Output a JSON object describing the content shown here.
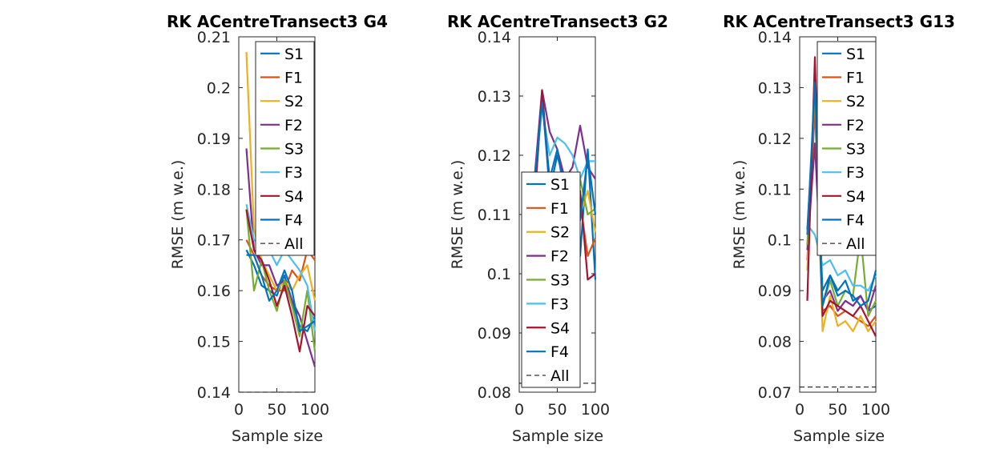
{
  "chart_data": [
    {
      "type": "line",
      "title": "RK ACentreTransect3 G4",
      "xlabel": "Sample size",
      "ylabel": "RMSE (m w.e.)",
      "xlim": [
        0,
        100
      ],
      "ylim": [
        0.14,
        0.21
      ],
      "xticks": [
        "0",
        "50",
        "100"
      ],
      "yticks": [
        "0.14",
        "0.15",
        "0.16",
        "0.17",
        "0.18",
        "0.19",
        "0.2",
        "0.21"
      ],
      "legend_position": "top-right",
      "x": [
        10,
        20,
        30,
        40,
        50,
        60,
        70,
        80,
        90,
        100
      ],
      "series": [
        {
          "name": "S1",
          "color": "#0072BD",
          "values": [
            0.168,
            0.165,
            0.161,
            0.16,
            0.159,
            0.163,
            0.158,
            0.153,
            0.152,
            0.155
          ]
        },
        {
          "name": "F1",
          "color": "#D95319",
          "values": [
            0.17,
            0.167,
            0.163,
            0.161,
            0.16,
            0.16,
            0.164,
            0.162,
            0.168,
            0.166
          ]
        },
        {
          "name": "S2",
          "color": "#EDB120",
          "values": [
            0.207,
            0.172,
            0.166,
            0.163,
            0.16,
            0.162,
            0.16,
            0.163,
            0.165,
            0.158
          ]
        },
        {
          "name": "F2",
          "color": "#7E2F8E",
          "values": [
            0.188,
            0.168,
            0.165,
            0.165,
            0.161,
            0.162,
            0.158,
            0.155,
            0.15,
            0.145
          ]
        },
        {
          "name": "S3",
          "color": "#77AC30",
          "values": [
            0.176,
            0.16,
            0.166,
            0.16,
            0.156,
            0.162,
            0.157,
            0.151,
            0.16,
            0.148
          ]
        },
        {
          "name": "F3",
          "color": "#4DBEEE",
          "values": [
            0.177,
            0.17,
            0.169,
            0.168,
            0.165,
            0.168,
            0.166,
            0.164,
            0.161,
            0.152
          ]
        },
        {
          "name": "S4",
          "color": "#A2142F",
          "values": [
            0.176,
            0.168,
            0.166,
            0.162,
            0.157,
            0.161,
            0.155,
            0.148,
            0.157,
            0.155
          ]
        },
        {
          "name": "F4",
          "color": "#0072BD",
          "values": [
            0.167,
            0.167,
            0.163,
            0.158,
            0.16,
            0.164,
            0.16,
            0.152,
            0.153,
            0.154
          ]
        }
      ],
      "reference": {
        "name": "All",
        "value": 0.14,
        "style": "dashed"
      }
    },
    {
      "type": "line",
      "title": "RK ACentreTransect3 G2",
      "xlabel": "Sample size",
      "ylabel": "RMSE (m w.e.)",
      "xlim": [
        0,
        100
      ],
      "ylim": [
        0.08,
        0.14
      ],
      "xticks": [
        "0",
        "50",
        "100"
      ],
      "yticks": [
        "0.08",
        "0.09",
        "0.1",
        "0.11",
        "0.12",
        "0.13",
        "0.14"
      ],
      "legend_position": "bottom-left",
      "x": [
        10,
        20,
        30,
        40,
        50,
        60,
        70,
        80,
        90,
        100
      ],
      "series": [
        {
          "name": "S1",
          "color": "#0072BD",
          "values": [
            0.11,
            0.112,
            0.13,
            0.114,
            0.12,
            0.115,
            0.11,
            0.103,
            0.121,
            0.099
          ]
        },
        {
          "name": "F1",
          "color": "#D95319",
          "values": [
            0.115,
            0.117,
            0.117,
            0.116,
            0.112,
            0.117,
            0.113,
            0.112,
            0.103,
            0.106
          ]
        },
        {
          "name": "S2",
          "color": "#EDB120",
          "values": [
            0.111,
            0.114,
            0.116,
            0.115,
            0.114,
            0.116,
            0.112,
            0.11,
            0.114,
            0.107
          ]
        },
        {
          "name": "F2",
          "color": "#7E2F8E",
          "values": [
            0.112,
            0.116,
            0.131,
            0.124,
            0.121,
            0.116,
            0.118,
            0.125,
            0.118,
            0.116
          ]
        },
        {
          "name": "S3",
          "color": "#77AC30",
          "values": [
            0.109,
            0.113,
            0.116,
            0.114,
            0.115,
            0.113,
            0.111,
            0.116,
            0.11,
            0.111
          ]
        },
        {
          "name": "F3",
          "color": "#4DBEEE",
          "values": [
            0.113,
            0.115,
            0.128,
            0.12,
            0.123,
            0.122,
            0.12,
            0.116,
            0.119,
            0.119
          ]
        },
        {
          "name": "S4",
          "color": "#A2142F",
          "values": [
            0.111,
            0.112,
            0.131,
            0.115,
            0.117,
            0.114,
            0.109,
            0.114,
            0.099,
            0.1
          ]
        },
        {
          "name": "F4",
          "color": "#0072BD",
          "values": [
            0.112,
            0.115,
            0.129,
            0.116,
            0.121,
            0.113,
            0.11,
            0.109,
            0.12,
            0.11
          ]
        }
      ],
      "reference": {
        "name": "All",
        "value": 0.0815,
        "style": "dashed"
      }
    },
    {
      "type": "line",
      "title": "RK ACentreTransect3 G13",
      "xlabel": "Sample size",
      "ylabel": "RMSE (m w.e.)",
      "xlim": [
        0,
        100
      ],
      "ylim": [
        0.07,
        0.14
      ],
      "xticks": [
        "0",
        "50",
        "100"
      ],
      "yticks": [
        "0.07",
        "0.08",
        "0.09",
        "0.1",
        "0.11",
        "0.12",
        "0.13",
        "0.14"
      ],
      "legend_position": "top-right",
      "x": [
        10,
        20,
        30,
        40,
        50,
        60,
        70,
        80,
        90,
        100
      ],
      "series": [
        {
          "name": "S1",
          "color": "#0072BD",
          "values": [
            0.102,
            0.128,
            0.09,
            0.093,
            0.09,
            0.092,
            0.088,
            0.089,
            0.086,
            0.087
          ]
        },
        {
          "name": "F1",
          "color": "#D95319",
          "values": [
            0.096,
            0.126,
            0.086,
            0.087,
            0.085,
            0.086,
            0.085,
            0.084,
            0.083,
            0.085
          ]
        },
        {
          "name": "S2",
          "color": "#EDB120",
          "values": [
            0.094,
            0.132,
            0.082,
            0.089,
            0.083,
            0.084,
            0.082,
            0.085,
            0.082,
            0.084
          ]
        },
        {
          "name": "F2",
          "color": "#7E2F8E",
          "values": [
            0.098,
            0.119,
            0.088,
            0.09,
            0.086,
            0.088,
            0.087,
            0.089,
            0.086,
            0.091
          ]
        },
        {
          "name": "S3",
          "color": "#77AC30",
          "values": [
            0.099,
            0.13,
            0.087,
            0.092,
            0.087,
            0.09,
            0.089,
            0.101,
            0.085,
            0.088
          ]
        },
        {
          "name": "F3",
          "color": "#4DBEEE",
          "values": [
            0.103,
            0.101,
            0.095,
            0.096,
            0.093,
            0.094,
            0.091,
            0.091,
            0.09,
            0.093
          ]
        },
        {
          "name": "S4",
          "color": "#A2142F",
          "values": [
            0.088,
            0.136,
            0.085,
            0.088,
            0.087,
            0.086,
            0.085,
            0.087,
            0.084,
            0.081
          ]
        },
        {
          "name": "F4",
          "color": "#0072BD",
          "values": [
            0.101,
            0.131,
            0.087,
            0.093,
            0.089,
            0.09,
            0.089,
            0.087,
            0.088,
            0.094
          ]
        }
      ],
      "reference": {
        "name": "All",
        "value": 0.071,
        "style": "dashed"
      }
    }
  ]
}
